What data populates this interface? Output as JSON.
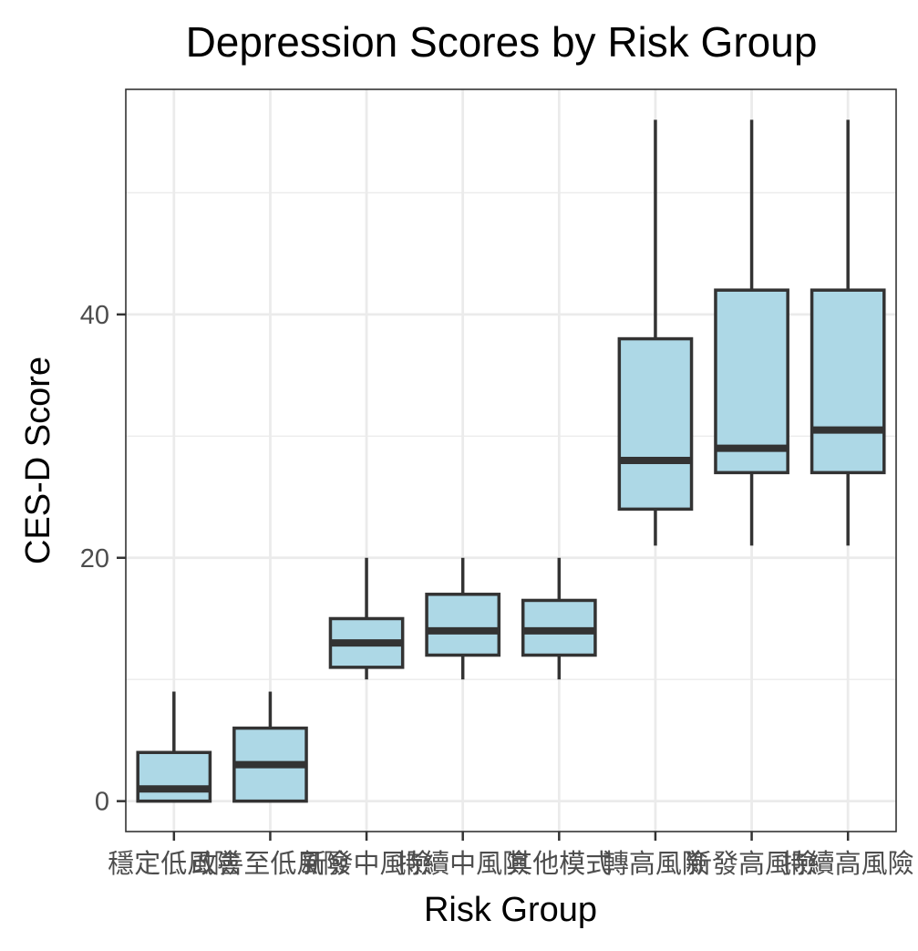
{
  "chart_data": {
    "type": "box",
    "title": "Depression Scores by Risk Group",
    "xlabel": "Risk Group",
    "ylabel": "CES-D Score",
    "ylim": [
      -2.5,
      58.5
    ],
    "y_ticks": [
      0,
      20,
      40
    ],
    "grid": true,
    "colors": {
      "box_fill": "#ADD8E6",
      "box_stroke": "#333333",
      "grid": "#ebebeb",
      "panel_border": "#333333"
    },
    "categories": [
      "穩定低風險",
      "改善至低風險",
      "新發中風險",
      "持續中風險",
      "其他模式",
      "轉高風險",
      "新發高風險",
      "持續高風險"
    ],
    "boxes": [
      {
        "category": "穩定低風險",
        "whisker_low": 0,
        "q1": 0,
        "median": 1,
        "q3": 4,
        "whisker_high": 9
      },
      {
        "category": "改善至低風險",
        "whisker_low": 0,
        "q1": 0,
        "median": 3,
        "q3": 6,
        "whisker_high": 9
      },
      {
        "category": "新發中風險",
        "whisker_low": 10,
        "q1": 11,
        "median": 13,
        "q3": 15,
        "whisker_high": 20
      },
      {
        "category": "持續中風險",
        "whisker_low": 10,
        "q1": 12,
        "median": 14,
        "q3": 17,
        "whisker_high": 20
      },
      {
        "category": "其他模式",
        "whisker_low": 10,
        "q1": 12,
        "median": 14,
        "q3": 16.5,
        "whisker_high": 20
      },
      {
        "category": "轉高風險",
        "whisker_low": 21,
        "q1": 24,
        "median": 28,
        "q3": 38,
        "whisker_high": 56
      },
      {
        "category": "新發高風險",
        "whisker_low": 21,
        "q1": 27,
        "median": 29,
        "q3": 42,
        "whisker_high": 56
      },
      {
        "category": "持續高風險",
        "whisker_low": 21,
        "q1": 27,
        "median": 30.5,
        "q3": 42,
        "whisker_high": 56
      }
    ]
  }
}
